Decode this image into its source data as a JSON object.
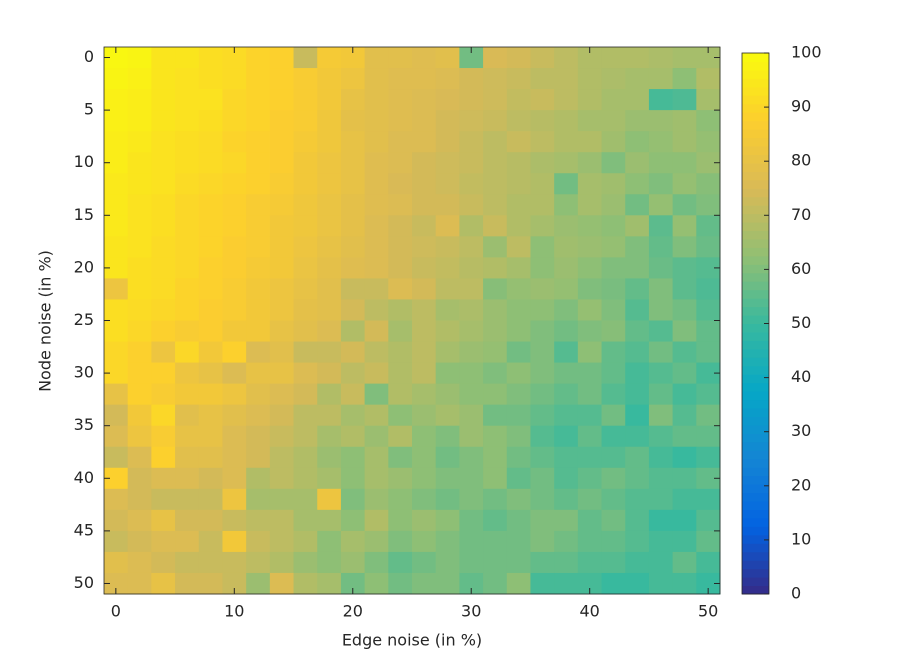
{
  "chart_data": {
    "type": "heatmap",
    "x_label": "Edge noise (in %)",
    "y_label": "Node noise (in %)",
    "x": [
      0,
      2,
      4,
      6,
      8,
      10,
      12,
      14,
      16,
      18,
      20,
      22,
      24,
      26,
      28,
      30,
      32,
      34,
      36,
      38,
      40,
      42,
      44,
      46,
      48,
      50
    ],
    "y": [
      0,
      2,
      4,
      6,
      8,
      10,
      12,
      14,
      16,
      18,
      20,
      22,
      24,
      26,
      28,
      30,
      32,
      34,
      36,
      38,
      40,
      42,
      44,
      46,
      48,
      50
    ],
    "values": [
      [
        99,
        98,
        94,
        94,
        92,
        91,
        89,
        88,
        72,
        85,
        84,
        78,
        78,
        77,
        78,
        58,
        75,
        74,
        72,
        70,
        68,
        68,
        68,
        67,
        66,
        66
      ],
      [
        98,
        97,
        94,
        93,
        92,
        91,
        89,
        88,
        86,
        84,
        82,
        78,
        77,
        77,
        76,
        74,
        73,
        72,
        70,
        70,
        68,
        67,
        66,
        66,
        62,
        68
      ],
      [
        97,
        96,
        94,
        93,
        93,
        90,
        89,
        88,
        86,
        84,
        80,
        78,
        77,
        76,
        75,
        74,
        73,
        71,
        72,
        70,
        68,
        66,
        66,
        52,
        53,
        66
      ],
      [
        97,
        96,
        94,
        93,
        92,
        90,
        89,
        87,
        86,
        83,
        79,
        78,
        77,
        76,
        74,
        73,
        72,
        70,
        69,
        68,
        66,
        66,
        64,
        64,
        65,
        62
      ],
      [
        96,
        95,
        93,
        92,
        91,
        89,
        88,
        87,
        85,
        83,
        80,
        78,
        76,
        76,
        74,
        72,
        70,
        72,
        70,
        68,
        68,
        65,
        62,
        63,
        65,
        63
      ],
      [
        96,
        94,
        93,
        92,
        91,
        90,
        88,
        87,
        84,
        82,
        80,
        77,
        76,
        74,
        73,
        72,
        70,
        69,
        67,
        66,
        64,
        60,
        64,
        62,
        62,
        64
      ],
      [
        95,
        94,
        93,
        91,
        90,
        89,
        88,
        86,
        84,
        82,
        80,
        77,
        75,
        74,
        73,
        71,
        70,
        69,
        68,
        58,
        66,
        65,
        62,
        60,
        63,
        61
      ],
      [
        95,
        93,
        92,
        90,
        89,
        88,
        86,
        85,
        83,
        81,
        79,
        77,
        76,
        74,
        74,
        72,
        70,
        68,
        68,
        62,
        66,
        64,
        58,
        63,
        58,
        60
      ],
      [
        95,
        93,
        92,
        90,
        89,
        88,
        86,
        84,
        83,
        81,
        79,
        76,
        74,
        72,
        76,
        68,
        72,
        68,
        66,
        64,
        63,
        62,
        65,
        55,
        63,
        56
      ],
      [
        94,
        93,
        91,
        90,
        89,
        87,
        86,
        84,
        82,
        80,
        78,
        76,
        74,
        73,
        72,
        70,
        64,
        70,
        62,
        65,
        64,
        63,
        60,
        56,
        60,
        57
      ],
      [
        94,
        92,
        91,
        90,
        88,
        87,
        85,
        84,
        81,
        79,
        77,
        76,
        74,
        72,
        71,
        69,
        68,
        66,
        62,
        64,
        62,
        60,
        60,
        57,
        55,
        54
      ],
      [
        82,
        92,
        91,
        89,
        88,
        86,
        84,
        82,
        80,
        78,
        72,
        72,
        76,
        74,
        70,
        70,
        61,
        63,
        64,
        63,
        60,
        59,
        56,
        60,
        55,
        53
      ],
      [
        92,
        91,
        90,
        89,
        87,
        86,
        84,
        82,
        79,
        78,
        74,
        70,
        68,
        70,
        66,
        67,
        64,
        62,
        62,
        60,
        63,
        60,
        54,
        60,
        58,
        54
      ],
      [
        92,
        90,
        88,
        86,
        87,
        84,
        84,
        80,
        78,
        76,
        68,
        74,
        66,
        70,
        68,
        66,
        64,
        62,
        60,
        58,
        60,
        61,
        56,
        54,
        60,
        56
      ],
      [
        90,
        88,
        82,
        90,
        84,
        88,
        76,
        78,
        72,
        72,
        74,
        70,
        68,
        70,
        66,
        64,
        63,
        58,
        60,
        54,
        62,
        56,
        54,
        58,
        54,
        56
      ],
      [
        90,
        88,
        88,
        82,
        80,
        76,
        80,
        80,
        76,
        74,
        70,
        72,
        68,
        70,
        62,
        62,
        60,
        62,
        60,
        58,
        58,
        56,
        52,
        54,
        56,
        52
      ],
      [
        80,
        88,
        86,
        84,
        84,
        82,
        78,
        76,
        74,
        68,
        72,
        60,
        68,
        66,
        64,
        62,
        62,
        60,
        58,
        56,
        58,
        54,
        52,
        56,
        52,
        54
      ],
      [
        74,
        84,
        90,
        78,
        80,
        78,
        76,
        74,
        70,
        70,
        66,
        68,
        62,
        64,
        66,
        64,
        58,
        58,
        56,
        54,
        54,
        58,
        50,
        60,
        54,
        58
      ],
      [
        76,
        82,
        86,
        80,
        80,
        76,
        74,
        72,
        70,
        66,
        68,
        64,
        68,
        62,
        60,
        64,
        62,
        60,
        54,
        52,
        56,
        52,
        52,
        54,
        56,
        56
      ],
      [
        72,
        76,
        88,
        78,
        78,
        76,
        74,
        70,
        68,
        64,
        62,
        66,
        60,
        62,
        58,
        60,
        62,
        58,
        56,
        54,
        54,
        54,
        56,
        52,
        50,
        52
      ],
      [
        88,
        74,
        76,
        76,
        74,
        76,
        68,
        70,
        68,
        66,
        62,
        66,
        64,
        62,
        60,
        60,
        62,
        56,
        58,
        54,
        56,
        58,
        56,
        54,
        54,
        56
      ],
      [
        76,
        74,
        72,
        72,
        72,
        82,
        66,
        66,
        66,
        82,
        60,
        64,
        62,
        60,
        58,
        60,
        58,
        60,
        58,
        56,
        58,
        56,
        54,
        54,
        52,
        52
      ],
      [
        74,
        76,
        80,
        74,
        74,
        72,
        70,
        70,
        66,
        66,
        62,
        68,
        62,
        64,
        62,
        58,
        56,
        58,
        60,
        60,
        56,
        58,
        54,
        50,
        50,
        54
      ],
      [
        72,
        74,
        76,
        76,
        72,
        84,
        72,
        70,
        68,
        62,
        66,
        64,
        60,
        62,
        60,
        58,
        58,
        58,
        60,
        58,
        56,
        56,
        54,
        52,
        52,
        56
      ],
      [
        78,
        76,
        74,
        72,
        72,
        72,
        70,
        68,
        64,
        62,
        64,
        60,
        56,
        58,
        60,
        58,
        58,
        58,
        56,
        56,
        54,
        54,
        52,
        52,
        56,
        52
      ],
      [
        76,
        76,
        80,
        74,
        74,
        72,
        64,
        76,
        68,
        66,
        58,
        62,
        58,
        60,
        60,
        56,
        58,
        62,
        52,
        52,
        52,
        50,
        50,
        52,
        52,
        50
      ]
    ],
    "xlim": [
      -1,
      51
    ],
    "ylim": [
      -1,
      51
    ],
    "y_reversed": true,
    "xticks": [
      0,
      10,
      20,
      30,
      40,
      50
    ],
    "yticks": [
      0,
      5,
      10,
      15,
      20,
      25,
      30,
      35,
      40,
      45,
      50
    ],
    "clim": [
      0,
      100
    ],
    "colorbar_ticks": [
      0,
      10,
      20,
      30,
      40,
      50,
      60,
      70,
      80,
      90,
      100
    ],
    "colormap": [
      "#352a87",
      "#0363e1",
      "#1485d4",
      "#06a7c6",
      "#38b99e",
      "#92bf73",
      "#d9ba56",
      "#fcce2e",
      "#f9fb0e"
    ]
  }
}
